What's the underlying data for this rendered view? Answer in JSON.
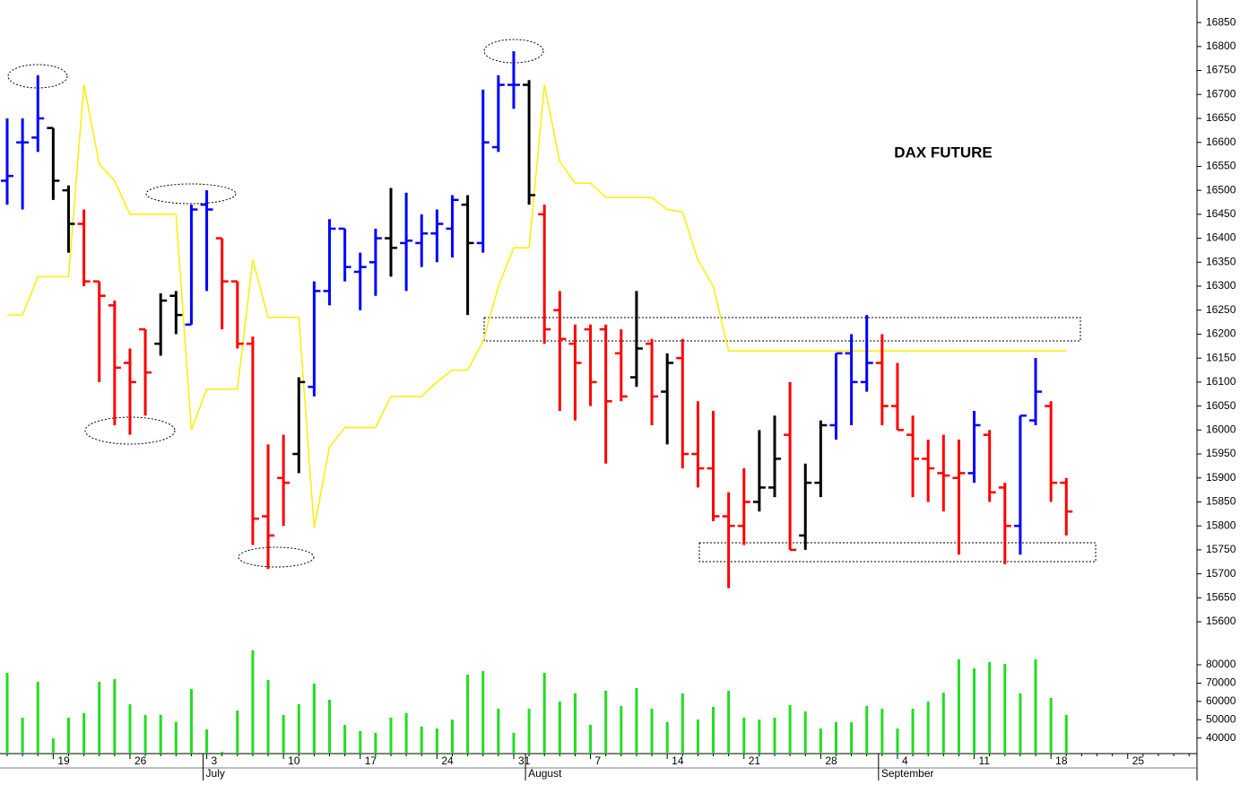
{
  "chart_data": {
    "type": "ohlc",
    "title": "DAX FUTURE",
    "categories": [
      null,
      null,
      null,
      "19",
      null,
      null,
      null,
      null,
      "26",
      null,
      null,
      null,
      null,
      "3",
      null,
      null,
      null,
      null,
      "10",
      null,
      null,
      null,
      null,
      "17",
      null,
      null,
      null,
      null,
      "24",
      null,
      null,
      null,
      null,
      "31",
      null,
      null,
      null,
      null,
      "7",
      null,
      null,
      null,
      null,
      "14",
      null,
      null,
      null,
      null,
      "21",
      null,
      null,
      null,
      null,
      "28",
      null,
      null,
      null,
      null,
      "4",
      null,
      null,
      null,
      null,
      "11",
      null,
      null,
      null,
      null,
      "18",
      null,
      null,
      null,
      null,
      "25",
      null,
      null,
      null,
      null
    ],
    "months": [
      null,
      null,
      null,
      null,
      null,
      null,
      null,
      null,
      null,
      null,
      null,
      null,
      null,
      "July",
      null,
      null,
      null,
      null,
      null,
      null,
      null,
      null,
      null,
      null,
      null,
      null,
      null,
      null,
      null,
      null,
      null,
      null,
      null,
      null,
      "August",
      null,
      null,
      null,
      null,
      null,
      null,
      null,
      null,
      null,
      null,
      null,
      null,
      null,
      null,
      null,
      null,
      null,
      null,
      null,
      null,
      null,
      null,
      "September",
      null,
      null,
      null,
      null,
      null,
      null,
      null,
      null,
      null,
      null,
      null,
      null,
      null,
      null,
      null,
      null,
      null,
      null,
      null,
      null
    ],
    "open": [
      16520,
      16600,
      16610,
      16630,
      16500,
      16430,
      16310,
      16260,
      16140,
      16210,
      16180,
      16280,
      16220,
      16470,
      16400,
      16310,
      16180,
      15820,
      15900,
      15950,
      16090,
      16290,
      16420,
      16330,
      16350,
      16400,
      16390,
      16390,
      16410,
      16420,
      16470,
      16390,
      16590,
      16720,
      16720,
      16450,
      16250,
      16180,
      16210,
      16210,
      16160,
      16110,
      16180,
      16080,
      16150,
      15950,
      15920,
      15820,
      15800,
      15850,
      15880,
      15990,
      15780,
      15890,
      16010,
      16160,
      16100,
      16140,
      16050,
      15990,
      15940,
      15910,
      15900,
      15910,
      15990,
      15880,
      15800,
      16020,
      16050,
      15890,
      null,
      null,
      null,
      null,
      null,
      null,
      null,
      null
    ],
    "high": [
      16650,
      16650,
      16740,
      16630,
      16510,
      16460,
      16310,
      16270,
      16170,
      16210,
      16285,
      16290,
      16470,
      16500,
      16400,
      16310,
      16195,
      15970,
      15990,
      16110,
      16310,
      16440,
      16420,
      16370,
      16420,
      16505,
      16495,
      16450,
      16460,
      16490,
      16490,
      16710,
      16740,
      16790,
      16730,
      16470,
      16290,
      16220,
      16220,
      16220,
      16210,
      16290,
      16190,
      16160,
      16190,
      16060,
      16040,
      15870,
      15920,
      16000,
      16030,
      16100,
      15930,
      16020,
      16160,
      16200,
      16240,
      16200,
      16140,
      16030,
      15980,
      15990,
      15980,
      16040,
      16000,
      15890,
      16030,
      16150,
      16060,
      15900,
      null,
      null,
      null,
      null,
      null,
      null,
      null,
      null
    ],
    "low": [
      16470,
      16460,
      16580,
      16480,
      16370,
      16300,
      16100,
      16010,
      15990,
      16030,
      16155,
      16200,
      16220,
      16290,
      16210,
      16170,
      15760,
      15710,
      15800,
      15910,
      16070,
      16260,
      16310,
      16250,
      16280,
      16320,
      16290,
      16340,
      16350,
      16360,
      16240,
      16370,
      16580,
      16670,
      16470,
      16180,
      16040,
      16020,
      16050,
      15930,
      16060,
      16090,
      16010,
      15970,
      15920,
      15880,
      15810,
      15670,
      15760,
      15830,
      15860,
      15750,
      15750,
      15860,
      15980,
      16010,
      16080,
      16010,
      16000,
      15860,
      15850,
      15830,
      15740,
      15890,
      15850,
      15720,
      15740,
      16010,
      15850,
      15780,
      null,
      null,
      null,
      null,
      null,
      null,
      null,
      null
    ],
    "close": [
      16530,
      16600,
      16650,
      16520,
      16430,
      16310,
      16280,
      16130,
      16100,
      16120,
      16270,
      16240,
      16460,
      16460,
      16310,
      16180,
      15815,
      15780,
      15890,
      16100,
      16290,
      16420,
      16340,
      16340,
      16400,
      16380,
      16395,
      16410,
      16430,
      16480,
      16390,
      16600,
      16720,
      16720,
      16490,
      16210,
      16190,
      16140,
      16100,
      16060,
      16070,
      16170,
      16070,
      16140,
      15950,
      15920,
      15820,
      15800,
      15850,
      15880,
      15940,
      15750,
      15890,
      16010,
      16160,
      16100,
      16140,
      16050,
      16000,
      15940,
      15920,
      15905,
      15910,
      16010,
      15870,
      15800,
      16030,
      16080,
      15890,
      15830,
      null,
      null,
      null,
      null,
      null,
      null,
      null,
      null
    ],
    "colors": [
      "blue",
      "blue",
      "blue",
      "black",
      "black",
      "red",
      "red",
      "red",
      "red",
      "red",
      "black",
      "black",
      "blue",
      "blue",
      "red",
      "red",
      "red",
      "red",
      "red",
      "black",
      "blue",
      "blue",
      "blue",
      "blue",
      "blue",
      "black",
      "blue",
      "blue",
      "blue",
      "blue",
      "black",
      "blue",
      "blue",
      "blue",
      "black",
      "red",
      "red",
      "red",
      "red",
      "red",
      "red",
      "black",
      "red",
      "black",
      "red",
      "red",
      "red",
      "red",
      "red",
      "black",
      "black",
      "red",
      "black",
      "black",
      "blue",
      "blue",
      "blue",
      "red",
      "red",
      "red",
      "red",
      "red",
      "red",
      "blue",
      "red",
      "red",
      "blue",
      "blue",
      "red",
      "red",
      null,
      null,
      null,
      null,
      null,
      null,
      null,
      null
    ],
    "line": {
      "color": "#ffee00",
      "values": [
        16240,
        16240,
        16320,
        16320,
        16320,
        16720,
        16555,
        16520,
        16450,
        16450,
        16450,
        16450,
        16000,
        16085,
        16085,
        16085,
        16355,
        16235,
        16235,
        16235,
        15795,
        15965,
        16005,
        16005,
        16005,
        16070,
        16070,
        16070,
        16100,
        16125,
        16125,
        16185,
        16300,
        16380,
        16380,
        16720,
        16560,
        16515,
        16515,
        16485,
        16485,
        16485,
        16485,
        16460,
        16455,
        16355,
        16300,
        16165,
        16165,
        16165,
        16165,
        16165,
        16165,
        16165,
        16165,
        16165,
        16165,
        16165,
        16165,
        16165,
        16165,
        16165,
        16165,
        16165,
        16165,
        16165,
        16165,
        16165,
        16165,
        16165,
        null,
        null,
        null,
        null,
        null,
        null,
        null,
        null
      ]
    },
    "volume": {
      "color": "#22dd22",
      "axis": "y2",
      "values": [
        75600,
        51100,
        70700,
        39800,
        51100,
        53600,
        70700,
        72200,
        58500,
        52600,
        52600,
        48700,
        66800,
        44700,
        32500,
        55000,
        87900,
        71700,
        52600,
        58500,
        69700,
        60900,
        47200,
        43800,
        42800,
        51100,
        53600,
        46200,
        45200,
        50100,
        74600,
        76600,
        56000,
        42800,
        56000,
        75600,
        59900,
        64300,
        47200,
        65800,
        57500,
        67300,
        56000,
        48700,
        64300,
        50100,
        57000,
        65800,
        51100,
        50100,
        51100,
        58000,
        54500,
        45200,
        48700,
        48700,
        57500,
        56000,
        45200,
        56000,
        59900,
        64800,
        83000,
        78100,
        81500,
        80500,
        64300,
        83000,
        61900,
        52600,
        null,
        null,
        null,
        null,
        null,
        null,
        null,
        null
      ]
    },
    "ylim": [
      15587,
      16897
    ],
    "yticks": [
      15600,
      15650,
      15700,
      15750,
      15800,
      15850,
      15900,
      15950,
      16000,
      16050,
      16100,
      16150,
      16200,
      16250,
      16300,
      16350,
      16400,
      16450,
      16500,
      16550,
      16600,
      16650,
      16700,
      16750,
      16800,
      16850
    ],
    "y2lim": [
      31500,
      90300
    ],
    "y2ticks": [
      40000,
      50000,
      60000,
      70000,
      80000
    ],
    "grid": false
  }
}
